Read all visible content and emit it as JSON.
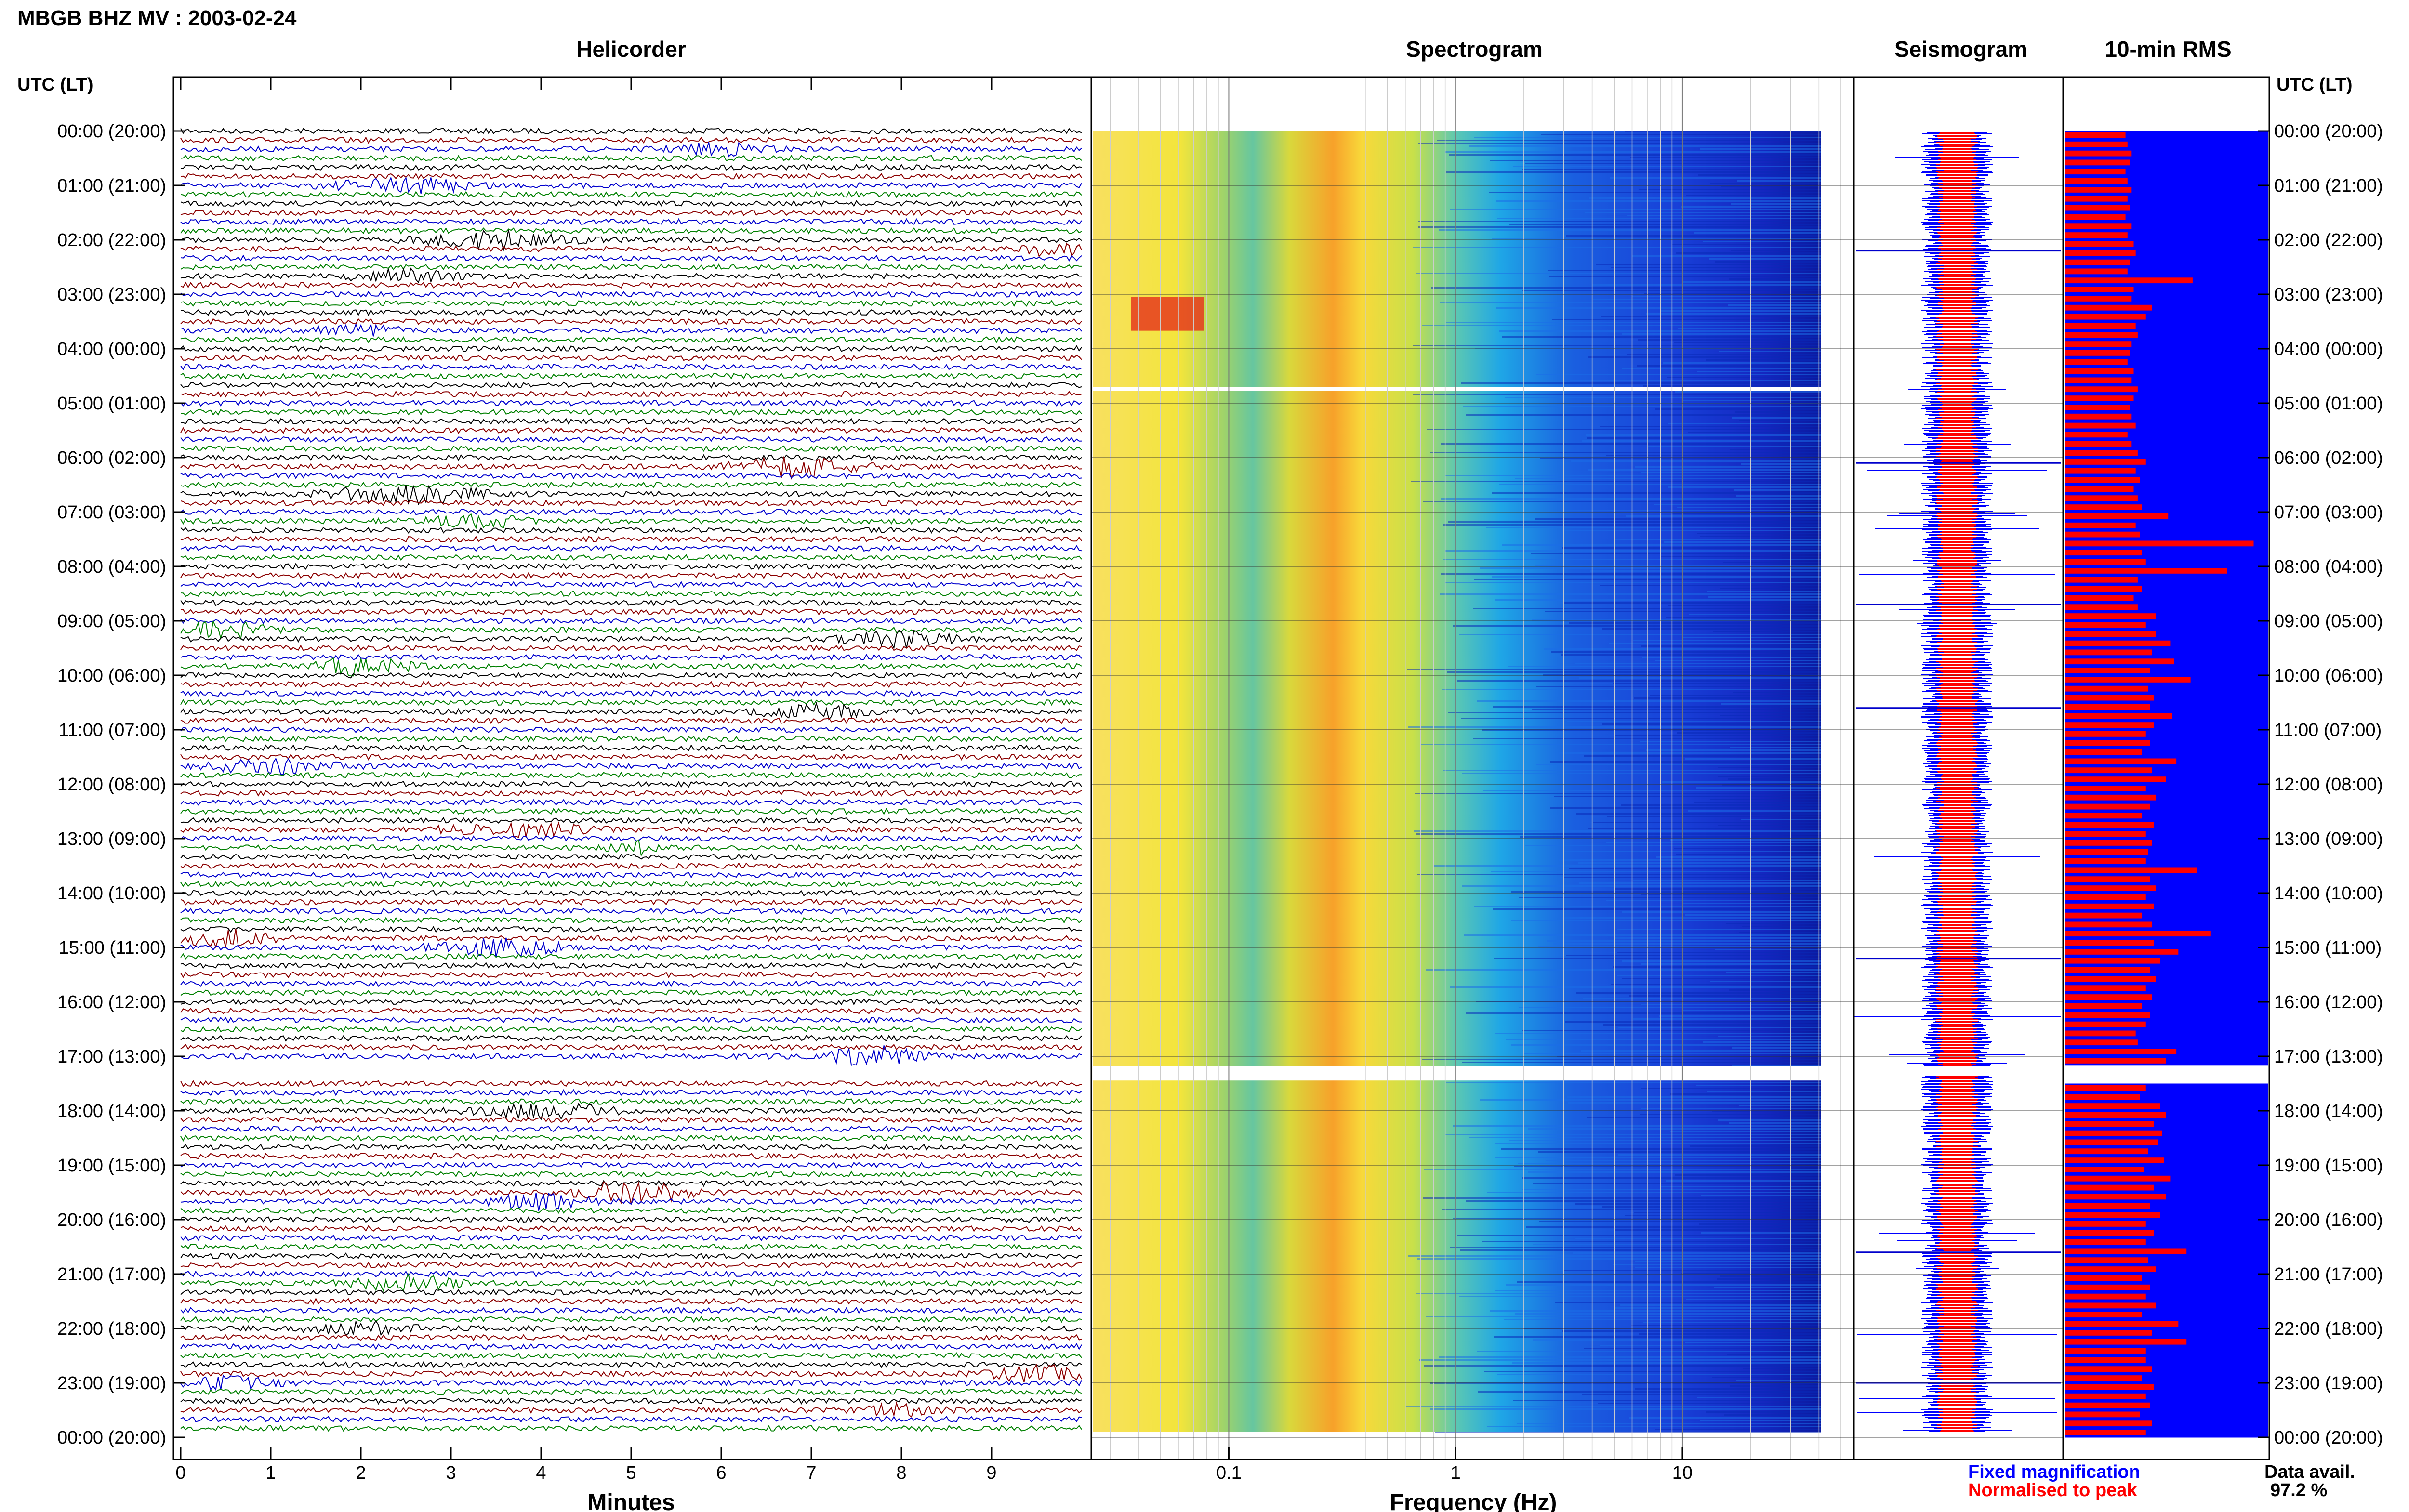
{
  "header": {
    "title": "MBGB BHZ MV : 2003-02-24"
  },
  "panels": {
    "helicorder": "Helicorder",
    "spectrogram": "Spectrogram",
    "seismogram": "Seismogram",
    "rms": "10-min RMS"
  },
  "axes": {
    "left_time_label": "UTC (LT)",
    "right_time_label": "UTC (LT)",
    "minutes_label": "Minutes",
    "frequency_label": "Frequency (Hz)"
  },
  "legend": {
    "fixed": "Fixed magnification",
    "normalised": "Normalised to peak",
    "fixed_color": "#0000ff",
    "normalised_color": "#ff0000"
  },
  "data_avail": {
    "label": "Data avail.",
    "value": "97.2 %"
  },
  "chart_data": {
    "type": "helicorder",
    "hour_labels": [
      "00:00 (20:00)",
      "01:00 (21:00)",
      "02:00 (22:00)",
      "03:00 (23:00)",
      "04:00 (00:00)",
      "05:00 (01:00)",
      "06:00 (02:00)",
      "07:00 (03:00)",
      "08:00 (04:00)",
      "09:00 (05:00)",
      "10:00 (06:00)",
      "11:00 (07:00)",
      "12:00 (08:00)",
      "13:00 (09:00)",
      "14:00 (10:00)",
      "15:00 (11:00)",
      "16:00 (12:00)",
      "17:00 (13:00)",
      "18:00 (14:00)",
      "19:00 (15:00)",
      "20:00 (16:00)",
      "21:00 (17:00)",
      "22:00 (18:00)",
      "23:00 (19:00)",
      "00:00 (20:00)"
    ],
    "minutes_ticks": [
      "0",
      "1",
      "2",
      "3",
      "4",
      "5",
      "6",
      "7",
      "8",
      "9"
    ],
    "minutes_range": [
      0,
      10
    ],
    "freq_ticks": [
      "0.1",
      "1",
      "10"
    ],
    "freq_range_log10": [
      -1.6,
      1.75
    ],
    "trace_colors": [
      "#000000",
      "#8b0000",
      "#0000cd",
      "#008000"
    ],
    "data_gap_hours": [
      17.0,
      17.25
    ],
    "rms_series": [
      {
        "name": "Fixed magnification",
        "color": "#0000ff"
      },
      {
        "name": "Normalised to peak",
        "color": "#ff0000"
      }
    ],
    "rms_red_fraction_per_10min": [
      0.3,
      0.31,
      0.33,
      0.32,
      0.3,
      0.31,
      0.33,
      0.31,
      0.32,
      0.3,
      0.33,
      0.31,
      0.34,
      0.35,
      0.32,
      0.31,
      0.63,
      0.34,
      0.33,
      0.43,
      0.4,
      0.35,
      0.36,
      0.33,
      0.32,
      0.31,
      0.34,
      0.33,
      0.36,
      0.34,
      0.32,
      0.33,
      0.35,
      0.31,
      0.33,
      0.36,
      0.4,
      0.35,
      0.37,
      0.34,
      0.36,
      0.38,
      0.51,
      0.35,
      0.37,
      0.93,
      0.38,
      0.4,
      0.8,
      0.36,
      0.38,
      0.34,
      0.36,
      0.45,
      0.4,
      0.45,
      0.52,
      0.43,
      0.54,
      0.42,
      0.62,
      0.41,
      0.44,
      0.42,
      0.53,
      0.44,
      0.4,
      0.42,
      0.38,
      0.55,
      0.43,
      0.5,
      0.4,
      0.45,
      0.42,
      0.38,
      0.44,
      0.4,
      0.43,
      0.41,
      0.4,
      0.65,
      0.42,
      0.45,
      0.4,
      0.44,
      0.38,
      0.43,
      0.72,
      0.44,
      0.56,
      0.47,
      0.42,
      0.45,
      0.4,
      0.43,
      0.38,
      0.42,
      0.4,
      0.35,
      0.36,
      0.55,
      0.5,
      0.42,
      0.38,
      0.4,
      0.37,
      0.47,
      0.5,
      0.44,
      0.48,
      0.46,
      0.41,
      0.49,
      0.39,
      0.52,
      0.44,
      0.5,
      0.42,
      0.47,
      0.4,
      0.44,
      0.4,
      0.6,
      0.41,
      0.45,
      0.38,
      0.42,
      0.4,
      0.45,
      0.38,
      0.56,
      0.43,
      0.6,
      0.4,
      0.4,
      0.43,
      0.38,
      0.44,
      0.4,
      0.42,
      0.37,
      0.43,
      0.4,
      0.41,
      0.38
    ]
  }
}
